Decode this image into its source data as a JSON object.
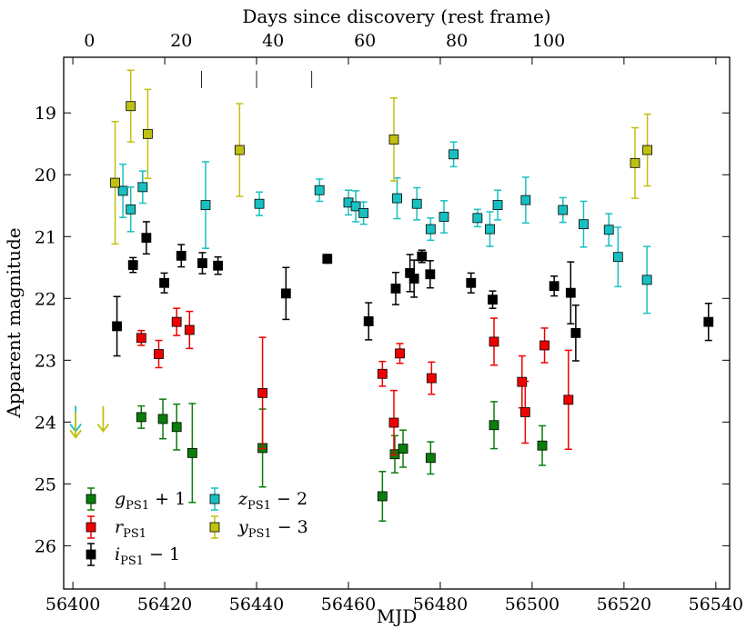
{
  "chart_data": {
    "type": "scatter",
    "title": "",
    "xlabel": "MJD",
    "ylabel": "Apparent magnitude",
    "top_xlabel": "Days since discovery (rest frame)",
    "xlim": [
      56398,
      56543
    ],
    "ylim": [
      26.7,
      18.1
    ],
    "y_inverted": true,
    "x_ticks": [
      56400,
      56420,
      56440,
      56460,
      56480,
      56500,
      56520,
      56540
    ],
    "y_ticks": [
      19,
      20,
      21,
      22,
      23,
      24,
      25,
      26
    ],
    "top_ticks": [
      {
        "label": "0",
        "mjd": 56403.6
      },
      {
        "label": "20",
        "mjd": 56423.6
      },
      {
        "label": "40",
        "mjd": 56443.6
      },
      {
        "label": "60",
        "mjd": 56463.6
      },
      {
        "label": "80",
        "mjd": 56483.6
      },
      {
        "label": "100",
        "mjd": 56503.6
      }
    ],
    "top_label_text": [
      "0",
      "20",
      "40",
      "60",
      "80",
      "100"
    ],
    "vertical_markers_mjd": [
      56428,
      56440,
      56452
    ],
    "legend_position": "lower-left",
    "series": [
      {
        "name": "gPS1 + 1",
        "legend_main": "g",
        "legend_sub": "PS1",
        "legend_suffix": " + 1",
        "color": "#0a7d0a",
        "points": [
          {
            "x": 56414.9,
            "y": 23.92,
            "err": 0.18
          },
          {
            "x": 56419.6,
            "y": 23.95,
            "err": 0.32
          },
          {
            "x": 56422.6,
            "y": 24.08,
            "err": 0.37
          },
          {
            "x": 56426.0,
            "y": 24.5,
            "err": 0.8
          },
          {
            "x": 56441.3,
            "y": 24.42,
            "err": 0.63
          },
          {
            "x": 56467.4,
            "y": 25.2,
            "err": 0.4
          },
          {
            "x": 56470.1,
            "y": 24.52,
            "err": 0.3
          },
          {
            "x": 56471.9,
            "y": 24.43,
            "err": 0.3
          },
          {
            "x": 56477.9,
            "y": 24.58,
            "err": 0.26
          },
          {
            "x": 56491.7,
            "y": 24.05,
            "err": 0.38
          },
          {
            "x": 56502.2,
            "y": 24.38,
            "err": 0.32
          }
        ]
      },
      {
        "name": "rPS1",
        "legend_main": "r",
        "legend_sub": "PS1",
        "legend_suffix": "",
        "color": "#ee0000",
        "points": [
          {
            "x": 56414.9,
            "y": 22.64,
            "err": 0.12
          },
          {
            "x": 56418.7,
            "y": 22.9,
            "err": 0.22
          },
          {
            "x": 56422.6,
            "y": 22.38,
            "err": 0.22
          },
          {
            "x": 56425.4,
            "y": 22.51,
            "err": 0.3
          },
          {
            "x": 56441.3,
            "y": 23.53,
            "err": 0.9
          },
          {
            "x": 56467.4,
            "y": 23.22,
            "err": 0.2
          },
          {
            "x": 56469.9,
            "y": 24.01,
            "err": 0.52
          },
          {
            "x": 56471.2,
            "y": 22.89,
            "err": 0.16
          },
          {
            "x": 56478.1,
            "y": 23.29,
            "err": 0.26
          },
          {
            "x": 56491.7,
            "y": 22.7,
            "err": 0.38
          },
          {
            "x": 56497.8,
            "y": 23.35,
            "err": 0.42
          },
          {
            "x": 56498.5,
            "y": 23.84,
            "err": 0.5
          },
          {
            "x": 56502.7,
            "y": 22.76,
            "err": 0.28
          },
          {
            "x": 56507.9,
            "y": 23.64,
            "err": 0.8
          }
        ]
      },
      {
        "name": "iPS1 - 1",
        "legend_main": "i",
        "legend_sub": "PS1",
        "legend_suffix": " − 1",
        "color": "#000000",
        "points": [
          {
            "x": 56409.6,
            "y": 22.45,
            "err": 0.48
          },
          {
            "x": 56413.1,
            "y": 21.46,
            "err": 0.12
          },
          {
            "x": 56416.0,
            "y": 21.02,
            "err": 0.26
          },
          {
            "x": 56419.9,
            "y": 21.75,
            "err": 0.16
          },
          {
            "x": 56423.6,
            "y": 21.31,
            "err": 0.18
          },
          {
            "x": 56428.2,
            "y": 21.43,
            "err": 0.17
          },
          {
            "x": 56431.6,
            "y": 21.47,
            "err": 0.14
          },
          {
            "x": 56446.4,
            "y": 21.92,
            "err": 0.42
          },
          {
            "x": 56455.4,
            "y": 21.36,
            "err": 0.07
          },
          {
            "x": 56464.4,
            "y": 22.37,
            "err": 0.3
          },
          {
            "x": 56470.3,
            "y": 21.84,
            "err": 0.26
          },
          {
            "x": 56473.4,
            "y": 21.59,
            "err": 0.3
          },
          {
            "x": 56474.3,
            "y": 21.68,
            "err": 0.3
          },
          {
            "x": 56476.0,
            "y": 21.32,
            "err": 0.1
          },
          {
            "x": 56477.8,
            "y": 21.61,
            "err": 0.22
          },
          {
            "x": 56486.7,
            "y": 21.75,
            "err": 0.16
          },
          {
            "x": 56491.4,
            "y": 22.02,
            "err": 0.14
          },
          {
            "x": 56504.8,
            "y": 21.8,
            "err": 0.16
          },
          {
            "x": 56508.4,
            "y": 21.91,
            "err": 0.5
          },
          {
            "x": 56509.5,
            "y": 22.56,
            "err": 0.45
          },
          {
            "x": 56538.4,
            "y": 22.38,
            "err": 0.3
          }
        ]
      },
      {
        "name": "zPS1 - 2",
        "legend_main": "z",
        "legend_sub": "PS1",
        "legend_suffix": " − 2",
        "color": "#17c0c0",
        "points": [
          {
            "x": 56410.9,
            "y": 20.26,
            "err": 0.43
          },
          {
            "x": 56412.6,
            "y": 20.56,
            "err": 0.36
          },
          {
            "x": 56415.2,
            "y": 20.2,
            "err": 0.26
          },
          {
            "x": 56428.9,
            "y": 20.49,
            "err": 0.7
          },
          {
            "x": 56440.6,
            "y": 20.47,
            "err": 0.19
          },
          {
            "x": 56453.7,
            "y": 20.25,
            "err": 0.18
          },
          {
            "x": 56460.0,
            "y": 20.45,
            "err": 0.2
          },
          {
            "x": 56461.6,
            "y": 20.51,
            "err": 0.25
          },
          {
            "x": 56463.3,
            "y": 20.62,
            "err": 0.18
          },
          {
            "x": 56470.6,
            "y": 20.38,
            "err": 0.33
          },
          {
            "x": 56474.9,
            "y": 20.47,
            "err": 0.26
          },
          {
            "x": 56477.9,
            "y": 20.88,
            "err": 0.18
          },
          {
            "x": 56480.8,
            "y": 20.68,
            "err": 0.26
          },
          {
            "x": 56482.9,
            "y": 19.67,
            "err": 0.2
          },
          {
            "x": 56488.1,
            "y": 20.7,
            "err": 0.14
          },
          {
            "x": 56490.8,
            "y": 20.88,
            "err": 0.28
          },
          {
            "x": 56492.5,
            "y": 20.49,
            "err": 0.24
          },
          {
            "x": 56498.6,
            "y": 20.41,
            "err": 0.37
          },
          {
            "x": 56506.7,
            "y": 20.57,
            "err": 0.2
          },
          {
            "x": 56511.2,
            "y": 20.8,
            "err": 0.37
          },
          {
            "x": 56516.7,
            "y": 20.89,
            "err": 0.26
          },
          {
            "x": 56518.7,
            "y": 21.33,
            "err": 0.48
          },
          {
            "x": 56525.0,
            "y": 21.7,
            "err": 0.54
          }
        ]
      },
      {
        "name": "yPS1 - 3",
        "legend_main": "y",
        "legend_sub": "PS1",
        "legend_suffix": " − 3",
        "color": "#c0c010",
        "points": [
          {
            "x": 56409.2,
            "y": 20.13,
            "err": 0.99
          },
          {
            "x": 56412.6,
            "y": 18.89,
            "err": 0.58
          },
          {
            "x": 56416.3,
            "y": 19.34,
            "err": 0.72
          },
          {
            "x": 56436.3,
            "y": 19.6,
            "err": 0.75
          },
          {
            "x": 56469.9,
            "y": 19.43,
            "err": 0.67
          },
          {
            "x": 56522.4,
            "y": 19.81,
            "err": 0.57
          },
          {
            "x": 56525.1,
            "y": 19.6,
            "err": 0.58
          }
        ]
      }
    ],
    "upper_limits": [
      {
        "series": "zPS1 - 2",
        "x": 56400.6,
        "y": 24.15,
        "color": "#17c0c0"
      },
      {
        "series": "yPS1 - 3",
        "x": 56400.6,
        "y": 24.25,
        "color": "#c0c010"
      },
      {
        "series": "yPS1 - 3",
        "x": 56406.6,
        "y": 24.15,
        "color": "#c0c010"
      }
    ]
  }
}
